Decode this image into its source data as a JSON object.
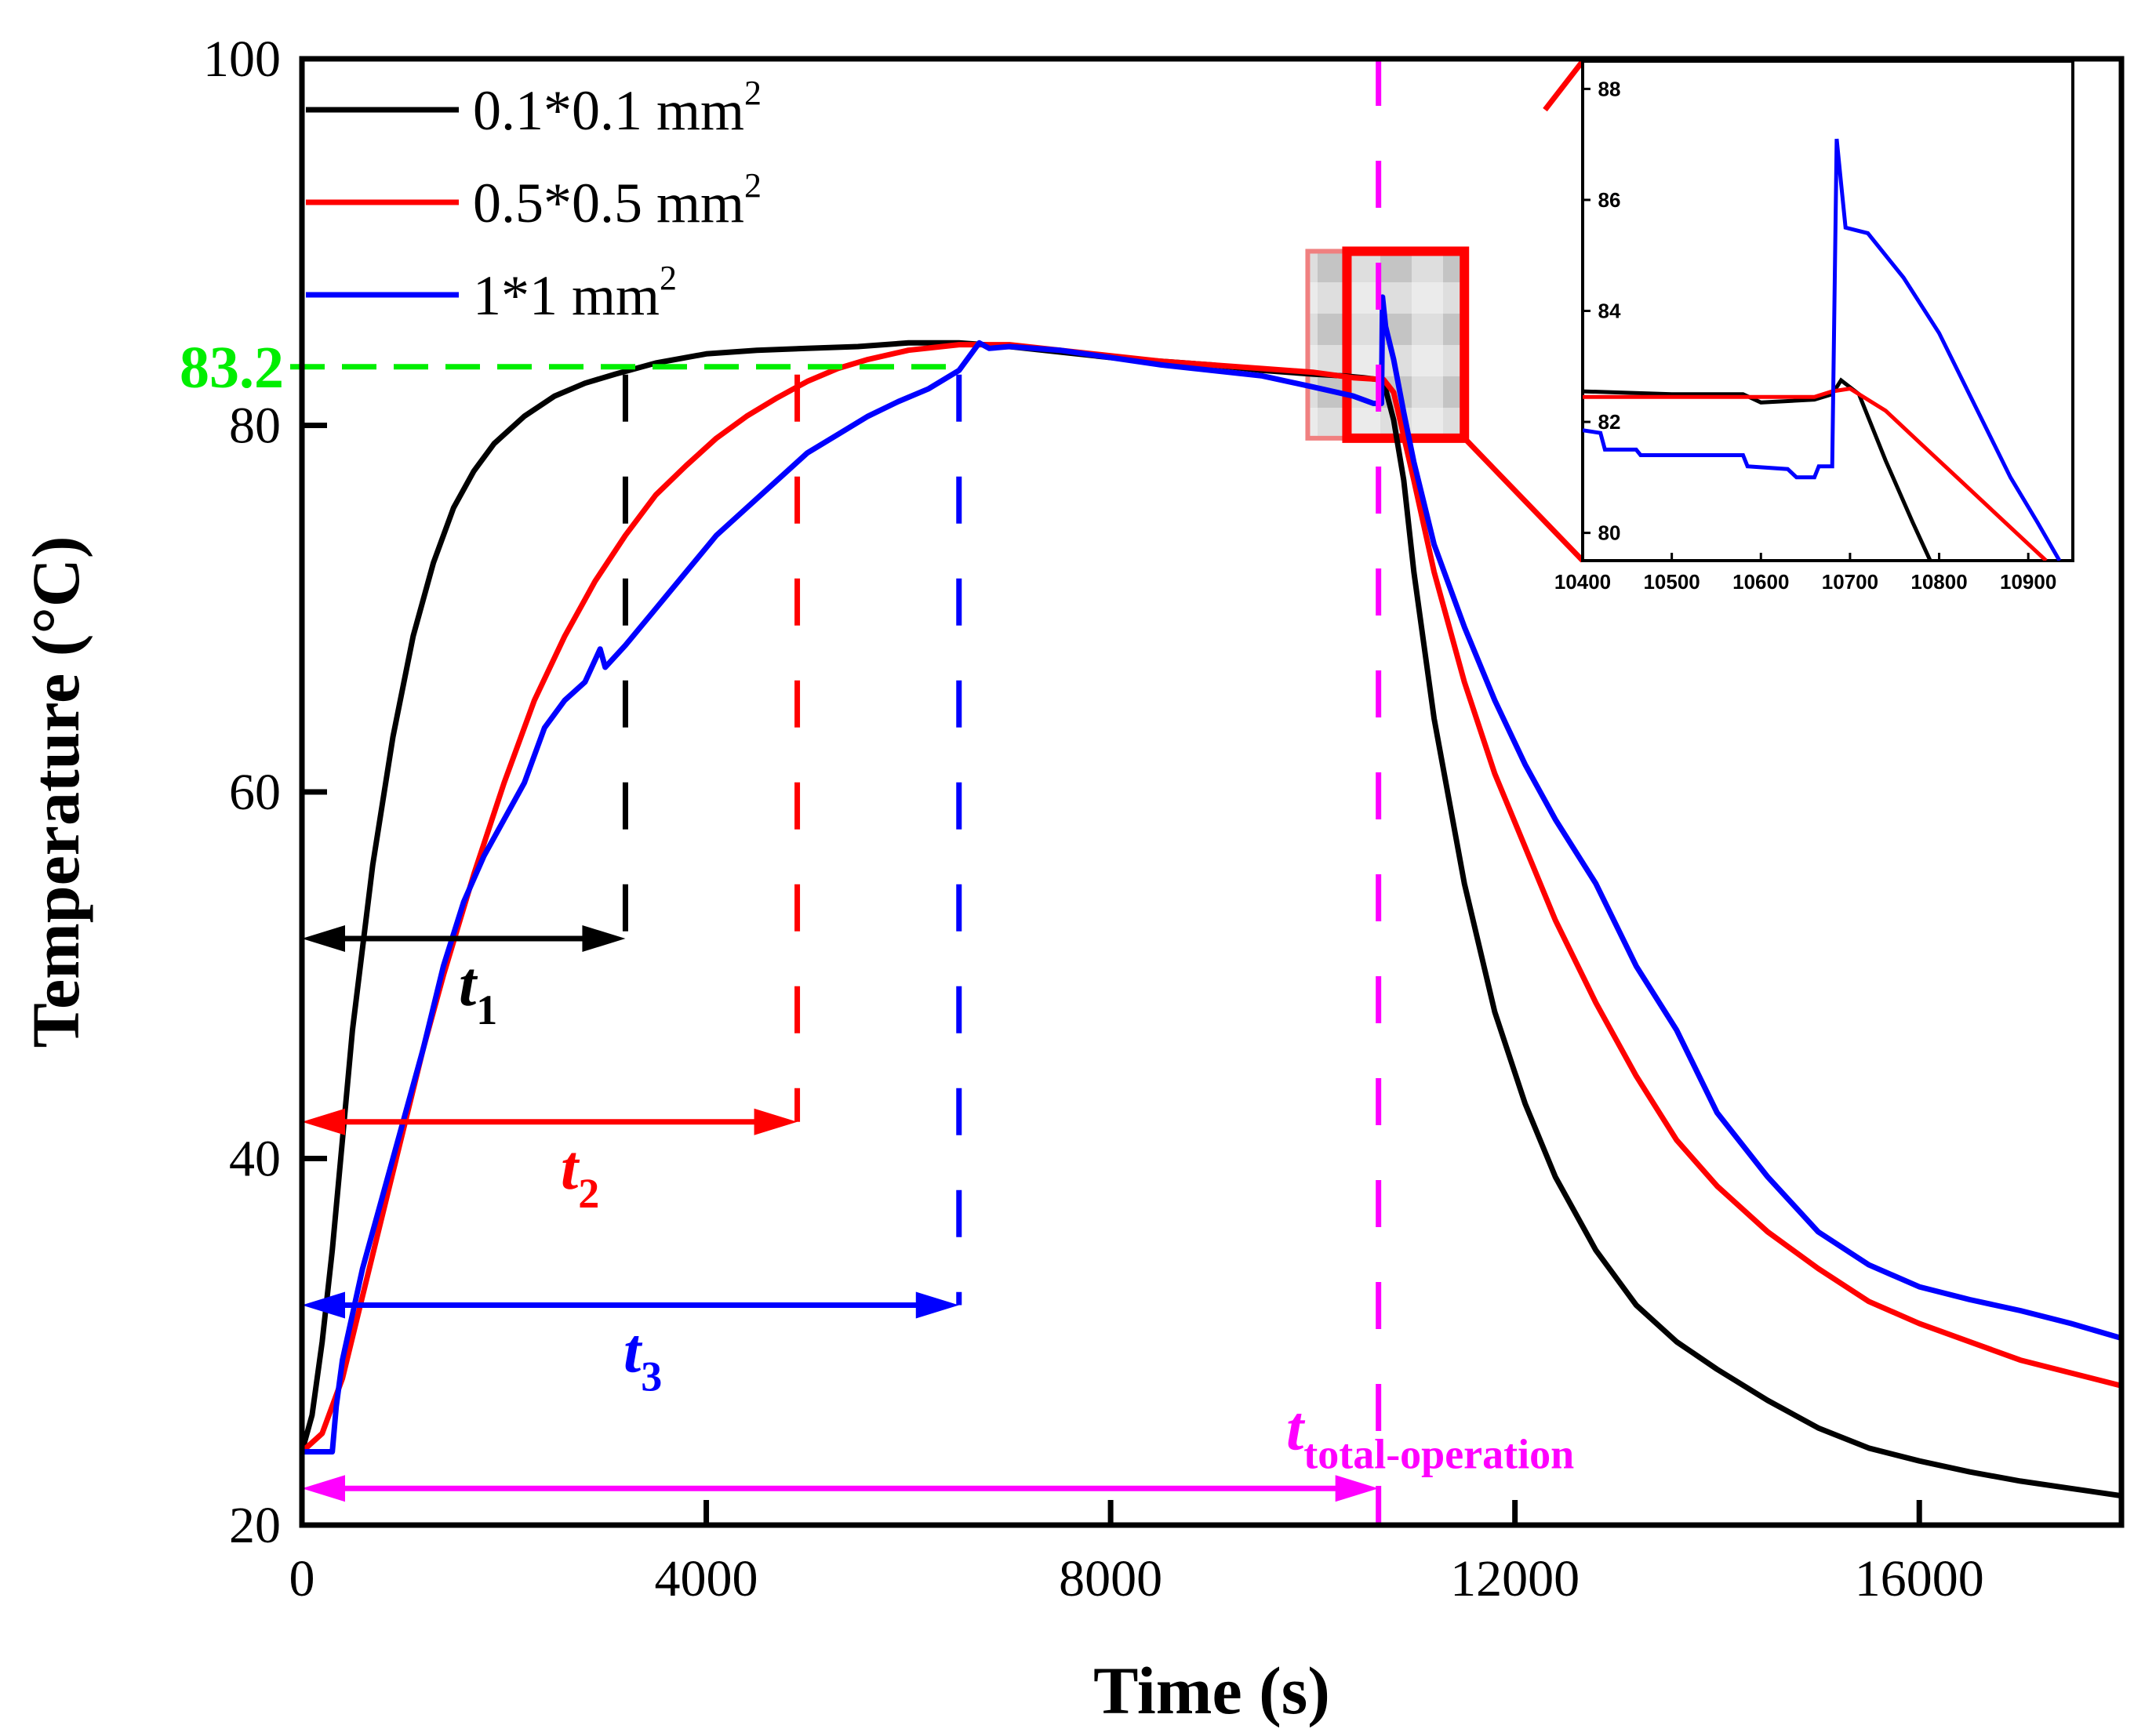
{
  "chart_data": {
    "type": "line",
    "xlabel": "Time (s)",
    "ylabel": "Temperature (°C)",
    "xlim": [
      0,
      18000
    ],
    "ylim": [
      20,
      100
    ],
    "xticks": [
      "0",
      "4000",
      "8000",
      "12000",
      "16000"
    ],
    "yticks": [
      "20",
      "40",
      "60",
      "80",
      "100"
    ],
    "legend_position": "top-left",
    "legend": [
      {
        "base": "0.1*0.1 mm",
        "sup": "2"
      },
      {
        "base": "0.5*0.5 mm",
        "sup": "2"
      },
      {
        "base": "1*1 mm",
        "sup": "2"
      }
    ],
    "series": [
      {
        "name": "0.1*0.1 mm²",
        "color": "#000000",
        "points": [
          [
            0,
            24
          ],
          [
            100,
            26
          ],
          [
            200,
            30
          ],
          [
            300,
            35
          ],
          [
            400,
            41
          ],
          [
            500,
            47
          ],
          [
            700,
            56
          ],
          [
            900,
            63
          ],
          [
            1100,
            68.5
          ],
          [
            1300,
            72.5
          ],
          [
            1500,
            75.5
          ],
          [
            1700,
            77.5
          ],
          [
            1900,
            79
          ],
          [
            2200,
            80.5
          ],
          [
            2500,
            81.6
          ],
          [
            2800,
            82.3
          ],
          [
            3100,
            82.8
          ],
          [
            3500,
            83.4
          ],
          [
            4000,
            83.9
          ],
          [
            4500,
            84.1
          ],
          [
            5000,
            84.2
          ],
          [
            5500,
            84.3
          ],
          [
            6000,
            84.5
          ],
          [
            6500,
            84.5
          ],
          [
            7000,
            84.3
          ],
          [
            7500,
            84.0
          ],
          [
            8000,
            83.7
          ],
          [
            8500,
            83.5
          ],
          [
            9000,
            83.3
          ],
          [
            9500,
            83.0
          ],
          [
            10000,
            82.8
          ],
          [
            10300,
            82.7
          ],
          [
            10500,
            82.6
          ],
          [
            10650,
            82.5
          ],
          [
            10700,
            82.4
          ],
          [
            10800,
            80.3
          ],
          [
            10900,
            77
          ],
          [
            11000,
            72
          ],
          [
            11200,
            64
          ],
          [
            11500,
            55
          ],
          [
            11800,
            48
          ],
          [
            12100,
            43
          ],
          [
            12400,
            39
          ],
          [
            12800,
            35
          ],
          [
            13200,
            32
          ],
          [
            13600,
            30
          ],
          [
            14000,
            28.5
          ],
          [
            14500,
            26.8
          ],
          [
            15000,
            25.3
          ],
          [
            15500,
            24.2
          ],
          [
            16000,
            23.5
          ],
          [
            16500,
            22.9
          ],
          [
            17000,
            22.4
          ],
          [
            17500,
            22
          ],
          [
            18000,
            21.6
          ]
        ]
      },
      {
        "name": "0.5*0.5 mm²",
        "color": "#ff0000",
        "points": [
          [
            0,
            24
          ],
          [
            200,
            25
          ],
          [
            400,
            28
          ],
          [
            600,
            32.5
          ],
          [
            800,
            37
          ],
          [
            1000,
            41.5
          ],
          [
            1200,
            46
          ],
          [
            1400,
            50
          ],
          [
            1700,
            55.5
          ],
          [
            2000,
            60.5
          ],
          [
            2300,
            65
          ],
          [
            2600,
            68.5
          ],
          [
            2900,
            71.5
          ],
          [
            3200,
            74
          ],
          [
            3500,
            76.2
          ],
          [
            3800,
            77.8
          ],
          [
            4100,
            79.3
          ],
          [
            4400,
            80.5
          ],
          [
            4700,
            81.5
          ],
          [
            5000,
            82.4
          ],
          [
            5300,
            83.1
          ],
          [
            5600,
            83.6
          ],
          [
            6000,
            84.1
          ],
          [
            6500,
            84.4
          ],
          [
            7000,
            84.4
          ],
          [
            7500,
            84.1
          ],
          [
            8000,
            83.8
          ],
          [
            8500,
            83.5
          ],
          [
            9000,
            83.3
          ],
          [
            9500,
            83.1
          ],
          [
            10000,
            82.9
          ],
          [
            10400,
            82.6
          ],
          [
            10700,
            82.5
          ],
          [
            10800,
            81.8
          ],
          [
            11000,
            77
          ],
          [
            11200,
            72
          ],
          [
            11500,
            66
          ],
          [
            11800,
            61
          ],
          [
            12100,
            57
          ],
          [
            12400,
            53
          ],
          [
            12800,
            48.5
          ],
          [
            13200,
            44.5
          ],
          [
            13600,
            41
          ],
          [
            14000,
            38.5
          ],
          [
            14500,
            36
          ],
          [
            15000,
            34
          ],
          [
            15500,
            32.2
          ],
          [
            16000,
            31
          ],
          [
            16500,
            30
          ],
          [
            17000,
            29
          ],
          [
            17500,
            28.3
          ],
          [
            18000,
            27.6
          ]
        ]
      },
      {
        "name": "1*1 mm²",
        "color": "#0000ff",
        "points": [
          [
            0,
            24
          ],
          [
            150,
            24
          ],
          [
            300,
            24
          ],
          [
            340,
            26.5
          ],
          [
            400,
            29
          ],
          [
            600,
            34
          ],
          [
            800,
            38
          ],
          [
            1000,
            42
          ],
          [
            1200,
            46
          ],
          [
            1400,
            50.5
          ],
          [
            1600,
            54
          ],
          [
            1800,
            56.5
          ],
          [
            2000,
            58.5
          ],
          [
            2200,
            60.5
          ],
          [
            2400,
            63.5
          ],
          [
            2600,
            65
          ],
          [
            2800,
            66
          ],
          [
            2950,
            67.8
          ],
          [
            3000,
            66.8
          ],
          [
            3200,
            68
          ],
          [
            3500,
            70
          ],
          [
            3800,
            72
          ],
          [
            4100,
            74
          ],
          [
            4400,
            75.5
          ],
          [
            4700,
            77
          ],
          [
            5000,
            78.5
          ],
          [
            5300,
            79.5
          ],
          [
            5600,
            80.5
          ],
          [
            5900,
            81.3
          ],
          [
            6200,
            82
          ],
          [
            6500,
            83
          ],
          [
            6700,
            84.5
          ],
          [
            6800,
            84.2
          ],
          [
            7000,
            84.3
          ],
          [
            7500,
            84.1
          ],
          [
            8000,
            83.7
          ],
          [
            8500,
            83.3
          ],
          [
            9000,
            83.0
          ],
          [
            9500,
            82.7
          ],
          [
            10000,
            82.1
          ],
          [
            10400,
            81.6
          ],
          [
            10600,
            81.2
          ],
          [
            10680,
            81.2
          ],
          [
            10690,
            87
          ],
          [
            10720,
            85.4
          ],
          [
            10800,
            83.6
          ],
          [
            10900,
            80.7
          ],
          [
            11000,
            78
          ],
          [
            11200,
            73.5
          ],
          [
            11500,
            69
          ],
          [
            11800,
            65
          ],
          [
            12100,
            61.5
          ],
          [
            12400,
            58.5
          ],
          [
            12800,
            55
          ],
          [
            13200,
            50.5
          ],
          [
            13600,
            47
          ],
          [
            14000,
            42.5
          ],
          [
            14500,
            39
          ],
          [
            15000,
            36
          ],
          [
            15500,
            34.2
          ],
          [
            16000,
            33
          ],
          [
            16500,
            32.3
          ],
          [
            17000,
            31.7
          ],
          [
            17500,
            31.0
          ],
          [
            18000,
            30.2
          ]
        ]
      }
    ],
    "reference_line": {
      "y": 83.2,
      "label": "83.2",
      "x_end": 6500,
      "color": "#00ee00"
    },
    "vertical_markers": [
      {
        "x": 3200,
        "color": "#000000"
      },
      {
        "x": 4900,
        "color": "#ff0000"
      },
      {
        "x": 6500,
        "color": "#0000ff"
      },
      {
        "x": 10650,
        "color": "#ff00ff"
      }
    ],
    "intervals": [
      {
        "id": "t1",
        "label": "t",
        "sub": "1",
        "y": 52,
        "x_end": 3200,
        "color": "#000000"
      },
      {
        "id": "t2",
        "label": "t",
        "sub": "2",
        "y": 42,
        "x_end": 4900,
        "color": "#ff0000"
      },
      {
        "id": "t3",
        "label": "t",
        "sub": "3",
        "y": 32,
        "x_end": 6500,
        "color": "#0000ff"
      },
      {
        "id": "ttotal",
        "label": "t",
        "sub": "total-operation",
        "y": 22,
        "x_end": 10650,
        "color": "#ff00ff"
      }
    ],
    "zoom_box": {
      "x0": 9950,
      "x1": 11500,
      "y0": 79.3,
      "y1": 89.5
    },
    "inset": {
      "xlim": [
        10400,
        10950
      ],
      "ylim": [
        79.5,
        88.5
      ],
      "xticks": [
        "10400",
        "10500",
        "10600",
        "10700",
        "10800",
        "10900"
      ],
      "yticks": [
        "80",
        "82",
        "84",
        "86",
        "88"
      ],
      "series": [
        {
          "color": "#000000",
          "points": [
            [
              10400,
              82.55
            ],
            [
              10500,
              82.5
            ],
            [
              10580,
              82.5
            ],
            [
              10600,
              82.35
            ],
            [
              10660,
              82.4
            ],
            [
              10680,
              82.5
            ],
            [
              10690,
              82.75
            ],
            [
              10710,
              82.5
            ],
            [
              10740,
              81.3
            ],
            [
              10770,
              80.2
            ],
            [
              10790,
              79.5
            ]
          ]
        },
        {
          "color": "#ff0000",
          "points": [
            [
              10400,
              82.45
            ],
            [
              10500,
              82.45
            ],
            [
              10600,
              82.45
            ],
            [
              10660,
              82.45
            ],
            [
              10680,
              82.55
            ],
            [
              10700,
              82.6
            ],
            [
              10740,
              82.2
            ],
            [
              10780,
              81.6
            ],
            [
              10820,
              81.0
            ],
            [
              10860,
              80.4
            ],
            [
              10900,
              79.8
            ],
            [
              10920,
              79.5
            ]
          ]
        },
        {
          "color": "#0000ff",
          "points": [
            [
              10400,
              81.85
            ],
            [
              10420,
              81.8
            ],
            [
              10425,
              81.5
            ],
            [
              10460,
              81.5
            ],
            [
              10465,
              81.4
            ],
            [
              10530,
              81.4
            ],
            [
              10580,
              81.4
            ],
            [
              10585,
              81.2
            ],
            [
              10630,
              81.15
            ],
            [
              10640,
              81.0
            ],
            [
              10660,
              81.0
            ],
            [
              10665,
              81.2
            ],
            [
              10680,
              81.2
            ],
            [
              10685,
              87.1
            ],
            [
              10690,
              86.3
            ],
            [
              10695,
              85.5
            ],
            [
              10720,
              85.4
            ],
            [
              10760,
              84.6
            ],
            [
              10800,
              83.6
            ],
            [
              10840,
              82.3
            ],
            [
              10880,
              81.0
            ],
            [
              10910,
              80.2
            ],
            [
              10935,
              79.5
            ]
          ]
        }
      ]
    }
  }
}
